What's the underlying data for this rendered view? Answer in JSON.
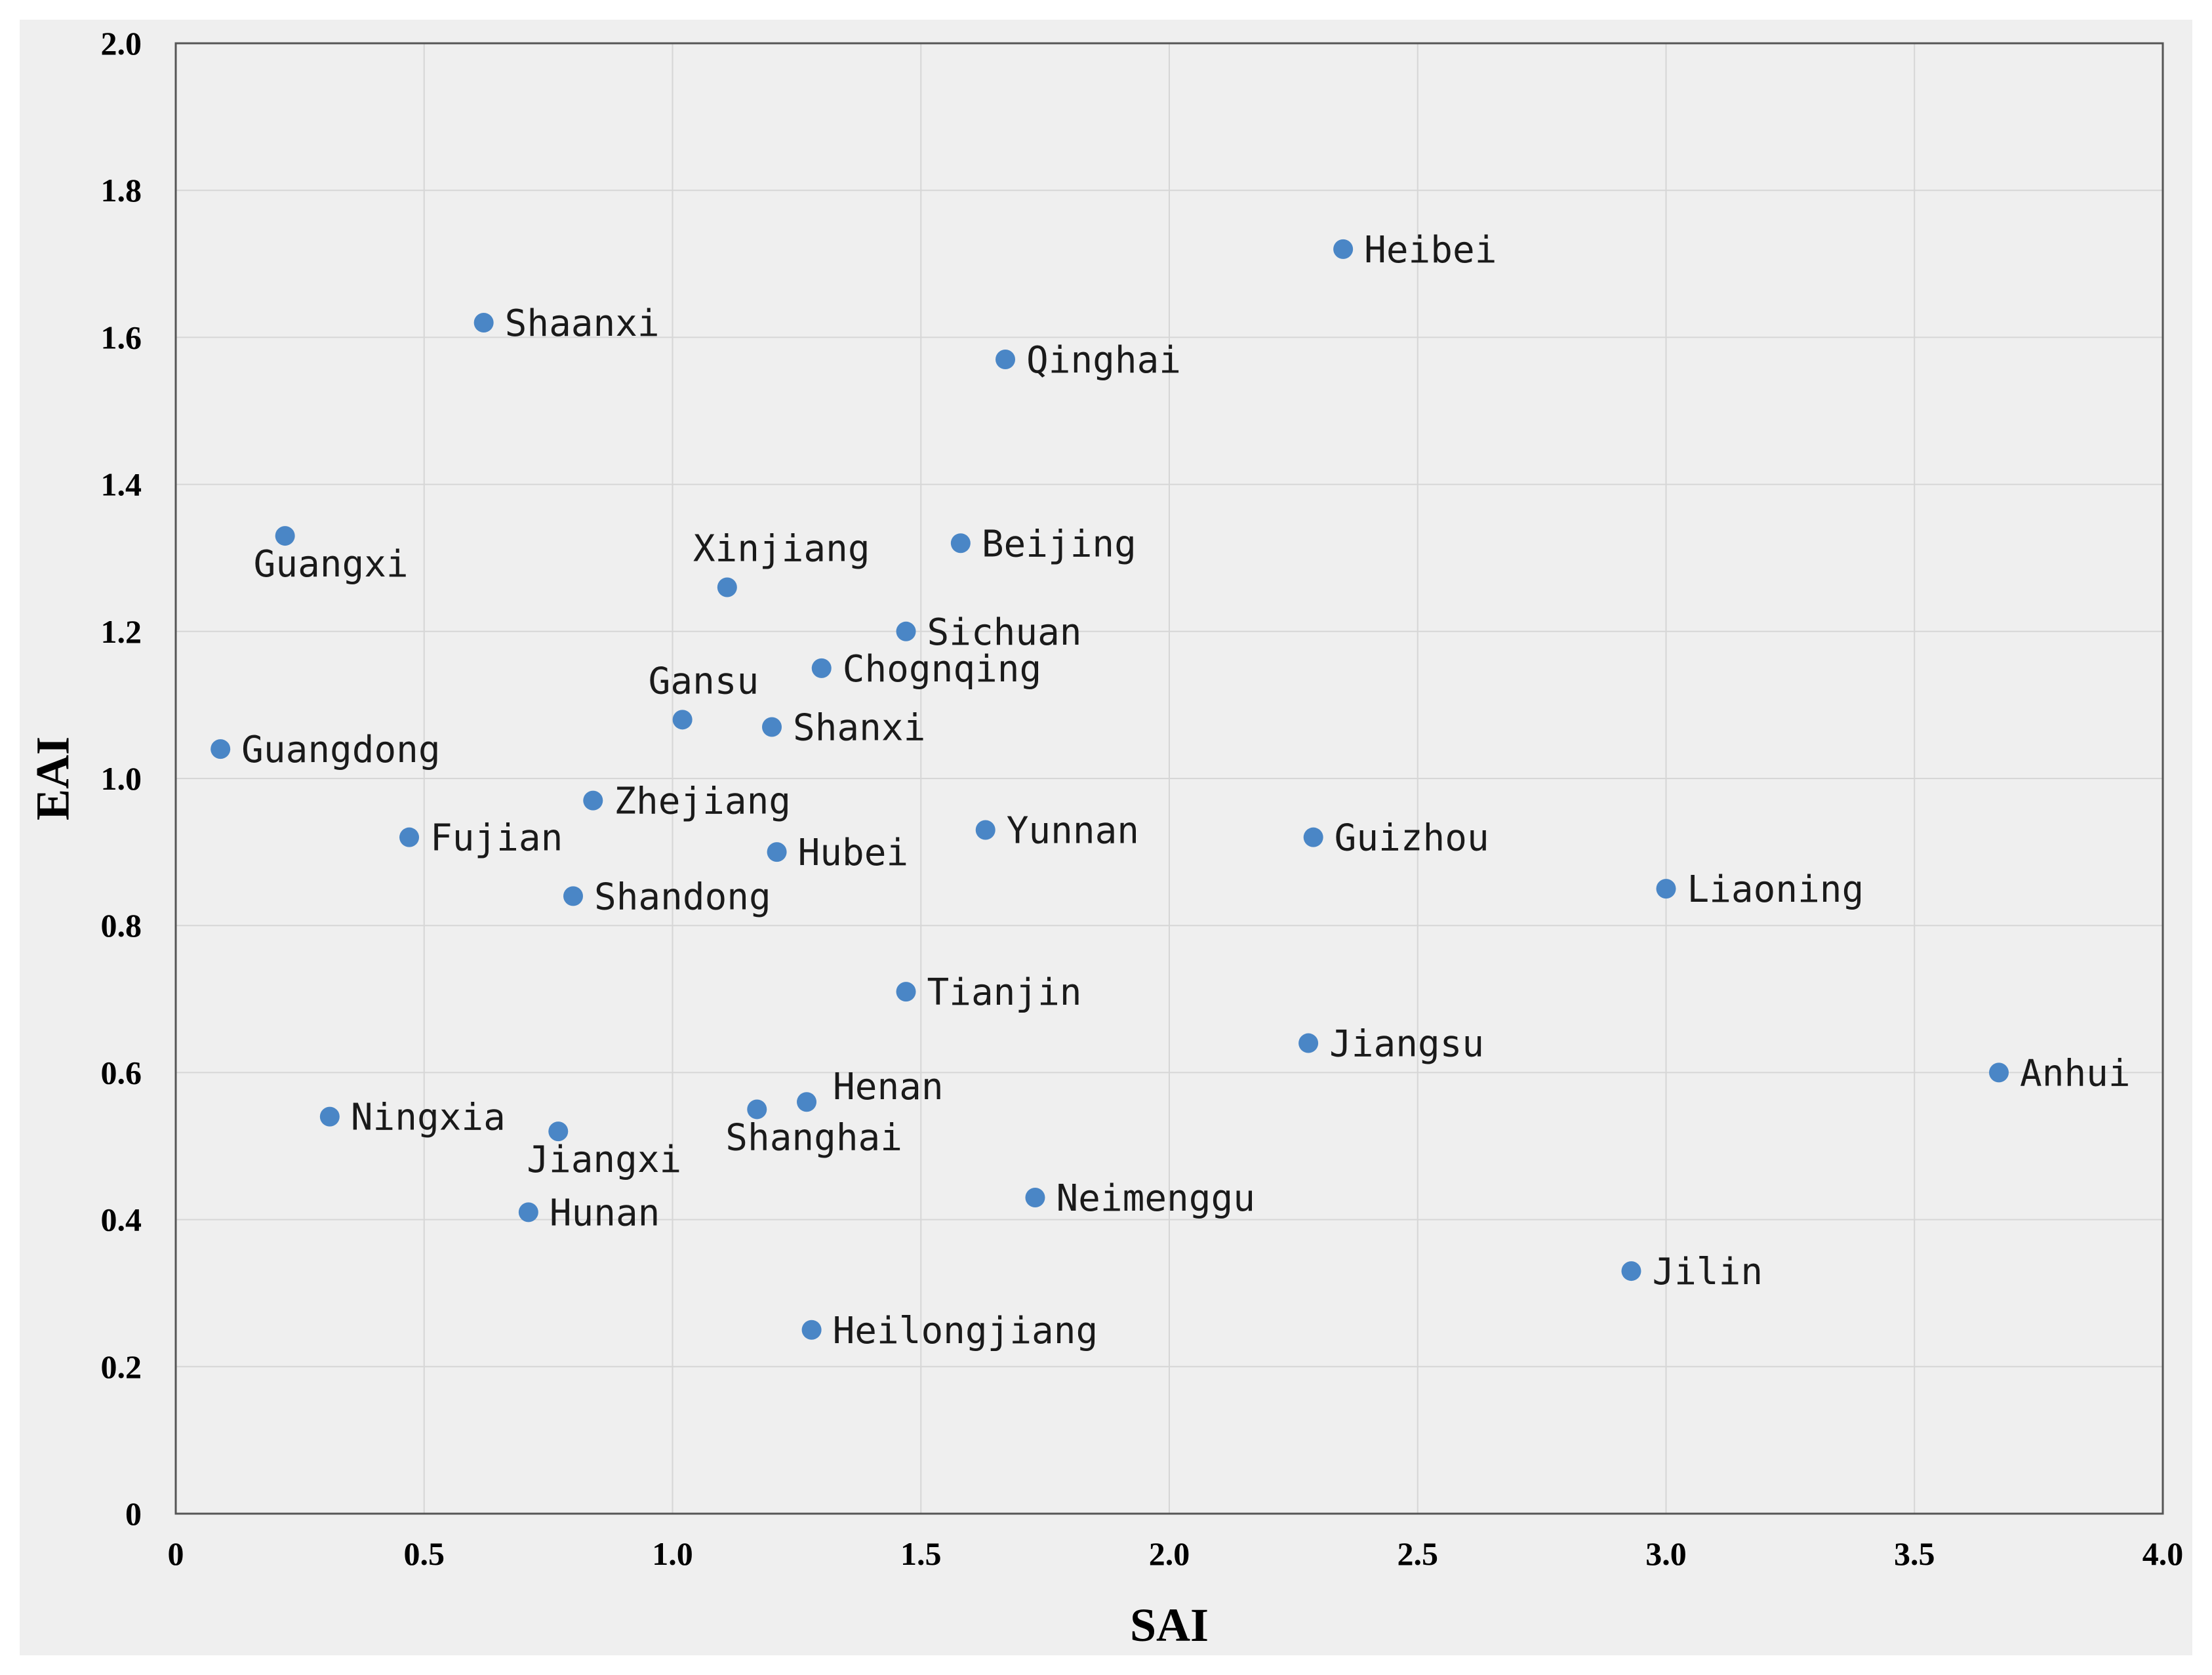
{
  "chart_data": {
    "type": "scatter",
    "xlabel": "SAI",
    "ylabel": "EAI",
    "xlim": [
      0,
      4.0
    ],
    "ylim": [
      0,
      2.0
    ],
    "x_ticks": [
      "0",
      "0.5",
      "1.0",
      "1.5",
      "2.0",
      "2.5",
      "3.0",
      "3.5",
      "4.0"
    ],
    "y_ticks": [
      "0",
      "0.2",
      "0.4",
      "0.6",
      "0.8",
      "1.0",
      "1.2",
      "1.4",
      "1.6",
      "1.8",
      "2.0"
    ],
    "grid": true,
    "point_color": "#4a86c6",
    "points": [
      {
        "label": "Heibei",
        "x": 2.35,
        "y": 1.72,
        "label_pos": "right"
      },
      {
        "label": "Shaanxi",
        "x": 0.62,
        "y": 1.62,
        "label_pos": "right"
      },
      {
        "label": "Qinghai",
        "x": 1.67,
        "y": 1.57,
        "label_pos": "right"
      },
      {
        "label": "Guangxi",
        "x": 0.22,
        "y": 1.33,
        "label_pos": "below"
      },
      {
        "label": "Beijing",
        "x": 1.58,
        "y": 1.32,
        "label_pos": "right"
      },
      {
        "label": "Xinjiang",
        "x": 1.11,
        "y": 1.26,
        "label_pos": "above"
      },
      {
        "label": "Sichuan",
        "x": 1.47,
        "y": 1.2,
        "label_pos": "right"
      },
      {
        "label": "Chognqing",
        "x": 1.3,
        "y": 1.15,
        "label_pos": "right"
      },
      {
        "label": "Gansu",
        "x": 1.02,
        "y": 1.08,
        "label_pos": "above"
      },
      {
        "label": "Shanxi",
        "x": 1.2,
        "y": 1.07,
        "label_pos": "right"
      },
      {
        "label": "Guangdong",
        "x": 0.09,
        "y": 1.04,
        "label_pos": "right"
      },
      {
        "label": "Zhejiang",
        "x": 0.84,
        "y": 0.97,
        "label_pos": "right"
      },
      {
        "label": "Yunnan",
        "x": 1.63,
        "y": 0.93,
        "label_pos": "right"
      },
      {
        "label": "Fujian",
        "x": 0.47,
        "y": 0.92,
        "label_pos": "right"
      },
      {
        "label": "Guizhou",
        "x": 2.29,
        "y": 0.92,
        "label_pos": "right"
      },
      {
        "label": "Hubei",
        "x": 1.21,
        "y": 0.9,
        "label_pos": "right"
      },
      {
        "label": "Liaoning",
        "x": 3.0,
        "y": 0.85,
        "label_pos": "right"
      },
      {
        "label": "Shandong",
        "x": 0.8,
        "y": 0.84,
        "label_pos": "right"
      },
      {
        "label": "Tianjin",
        "x": 1.47,
        "y": 0.71,
        "label_pos": "right"
      },
      {
        "label": "Jiangsu",
        "x": 2.28,
        "y": 0.64,
        "label_pos": "right"
      },
      {
        "label": "Anhui",
        "x": 3.67,
        "y": 0.6,
        "label_pos": "right"
      },
      {
        "label": "Henan",
        "x": 1.27,
        "y": 0.56,
        "label_pos": "above-right"
      },
      {
        "label": "Shanghai",
        "x": 1.17,
        "y": 0.55,
        "label_pos": "below"
      },
      {
        "label": "Ningxia",
        "x": 0.31,
        "y": 0.54,
        "label_pos": "right"
      },
      {
        "label": "Jiangxi",
        "x": 0.77,
        "y": 0.52,
        "label_pos": "below"
      },
      {
        "label": "Neimenggu",
        "x": 1.73,
        "y": 0.43,
        "label_pos": "right"
      },
      {
        "label": "Hunan",
        "x": 0.71,
        "y": 0.41,
        "label_pos": "right"
      },
      {
        "label": "Jilin",
        "x": 2.93,
        "y": 0.33,
        "label_pos": "right"
      },
      {
        "label": "Heilongjiang",
        "x": 1.28,
        "y": 0.25,
        "label_pos": "right"
      }
    ]
  }
}
